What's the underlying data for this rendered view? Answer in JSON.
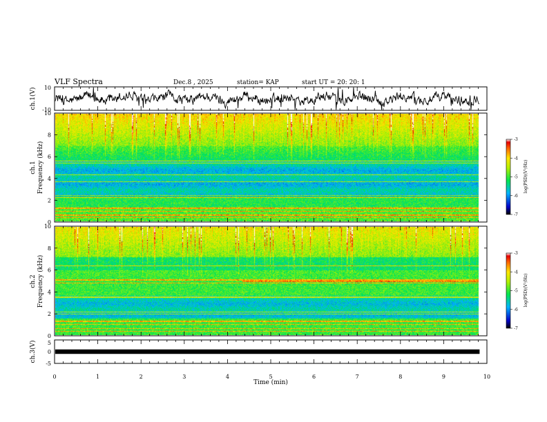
{
  "header": {
    "title": "VLF Spectra",
    "date": "Dec.8 , 2025",
    "station": "station= KAP",
    "start_ut": "start UT = 20: 20: 1"
  },
  "chart_data": {
    "type": "heatmap",
    "title": "VLF Spectra",
    "xlabel": "Time (min)",
    "xlim": [
      0,
      10
    ],
    "xticks": [
      0,
      1,
      2,
      3,
      4,
      5,
      6,
      7,
      8,
      9,
      10
    ],
    "panels": [
      {
        "id": "ch1-waveform",
        "type": "line",
        "ylabel": "ch.1(V)",
        "ylim": [
          -10,
          10
        ],
        "ytick_labels": [
          "10",
          "-10"
        ],
        "data_end_min": 9.83
      },
      {
        "id": "ch1-spectrogram",
        "type": "heatmap",
        "ylabel_line1": "ch.1",
        "ylabel_line2": "Frequency (kHz)",
        "ylim": [
          0,
          10
        ],
        "yticks": [
          0,
          2,
          4,
          6,
          8,
          10
        ],
        "data_end_min": 9.83,
        "colorbar": {
          "label": "log(PSD)(V²/Hz)",
          "range": [
            -7,
            -3
          ],
          "ticks": [
            "-3",
            "-4",
            "-5",
            "-6",
            "-7"
          ]
        }
      },
      {
        "id": "ch2-spectrogram",
        "type": "heatmap",
        "ylabel_line1": "ch.2",
        "ylabel_line2": "Frequency (kHz)",
        "ylim": [
          0,
          10
        ],
        "yticks": [
          0,
          2,
          4,
          6,
          8,
          10
        ],
        "data_end_min": 9.83,
        "colorbar": {
          "label": "log(PSD)(V²/Hz)",
          "range": [
            -7,
            -3
          ],
          "ticks": [
            "-3",
            "-4",
            "-5",
            "-6",
            "-7"
          ]
        }
      },
      {
        "id": "ch3-waveform",
        "type": "line",
        "ylabel": "ch.3(V)",
        "ylim": [
          -5,
          5
        ],
        "ytick_labels": [
          "5",
          "0",
          "-5"
        ],
        "data_end_min": 9.83
      }
    ]
  }
}
